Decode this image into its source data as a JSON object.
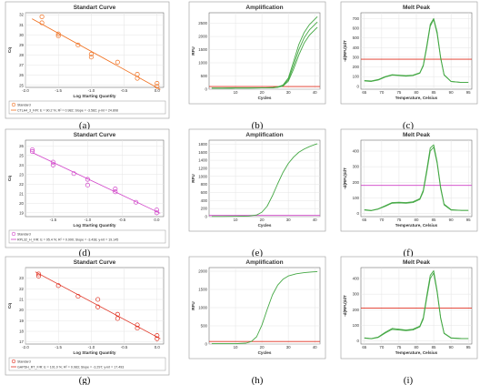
{
  "chart_data": [
    {
      "id": "a",
      "type": "scatter",
      "title": "Standart Curve",
      "xlabel": "Log Starting Quantity",
      "ylabel": "Cq",
      "xlim": [
        -2.0,
        0.1
      ],
      "ylim": [
        24.8,
        32.2
      ],
      "xticks": [
        -2.0,
        -1.5,
        -1.0,
        -0.5,
        0.0
      ],
      "xtick_labels": [
        "-2.0",
        "-1.5",
        "-1.0",
        "-0.5",
        "0.0"
      ],
      "yticks": [
        25,
        26,
        27,
        28,
        29,
        30,
        31,
        32
      ],
      "ytick_labels": [
        "25",
        "26",
        "27",
        "28",
        "29",
        "30",
        "31",
        "32"
      ],
      "grid": true,
      "color": "#f07020",
      "marker": "circle",
      "fit_line": true,
      "legend": {
        "position": "bottom",
        "entries": [
          "Standard",
          "CTLA4_3_F/R: E = 90.2 %; R² = 0.982; Slope = -3.582; y-int = 24.808"
        ]
      },
      "points": {
        "x": [
          -1.75,
          -1.75,
          -1.5,
          -1.5,
          -1.2,
          -1.0,
          -1.0,
          -0.6,
          -0.3,
          -0.3,
          0.0,
          0.0
        ],
        "y": [
          31.8,
          31.2,
          30.1,
          29.9,
          29.0,
          28.1,
          27.8,
          27.3,
          26.1,
          25.7,
          25.2,
          24.9
        ]
      },
      "fit": {
        "x": [
          -1.9,
          0.05
        ],
        "y": [
          31.6,
          24.6
        ]
      }
    },
    {
      "id": "b",
      "type": "line",
      "title": "Amplification",
      "xlabel": "Cycles",
      "ylabel": "RFU",
      "xlim": [
        0,
        42
      ],
      "ylim": [
        0,
        2900
      ],
      "xticks": [
        10,
        20,
        30,
        40
      ],
      "xtick_labels": [
        "10",
        "20",
        "30",
        "40"
      ],
      "yticks": [
        0,
        500,
        1000,
        1500,
        2000,
        2500
      ],
      "ytick_labels": [
        "0",
        "500",
        "1000",
        "1500",
        "2000",
        "2500"
      ],
      "grid": true,
      "threshold": 100,
      "threshold_color": "#e03020",
      "series": [
        {
          "x": [
            1,
            5,
            10,
            15,
            20,
            24,
            26,
            28,
            30,
            32,
            34,
            36,
            38,
            40,
            41
          ],
          "y": [
            40,
            40,
            45,
            45,
            50,
            60,
            90,
            160,
            420,
            1050,
            1700,
            2150,
            2450,
            2650,
            2750
          ]
        },
        {
          "x": [
            1,
            5,
            10,
            15,
            20,
            24,
            26,
            28,
            30,
            32,
            34,
            36,
            38,
            40,
            41
          ],
          "y": [
            40,
            40,
            45,
            45,
            50,
            55,
            80,
            140,
            360,
            900,
            1500,
            1950,
            2250,
            2450,
            2550
          ]
        },
        {
          "x": [
            1,
            5,
            10,
            15,
            20,
            24,
            26,
            28,
            30,
            32,
            34,
            36,
            38,
            40,
            41
          ],
          "y": [
            40,
            40,
            45,
            45,
            50,
            55,
            70,
            120,
            300,
            760,
            1300,
            1750,
            2050,
            2250,
            2350
          ]
        }
      ]
    },
    {
      "id": "c",
      "type": "line",
      "title": "Melt Peak",
      "xlabel": "Temperature, Celsius",
      "ylabel": "-d(RFU)/dT",
      "xlim": [
        64,
        96
      ],
      "ylim": [
        -30,
        760
      ],
      "xticks": [
        65,
        70,
        75,
        80,
        85,
        90,
        95
      ],
      "xtick_labels": [
        "65",
        "70",
        "75",
        "80",
        "85",
        "90",
        "95"
      ],
      "yticks": [
        0,
        100,
        200,
        300,
        400,
        500,
        600,
        700
      ],
      "ytick_labels": [
        "0",
        "100",
        "200",
        "300",
        "400",
        "500",
        "600",
        "700"
      ],
      "grid": true,
      "threshold": 280,
      "threshold_color": "#e03020",
      "series": [
        {
          "x": [
            65,
            67,
            69,
            71,
            73,
            75,
            77,
            79,
            81,
            82,
            83,
            84,
            85,
            86,
            87,
            88,
            90,
            93,
            95
          ],
          "y": [
            60,
            55,
            70,
            100,
            120,
            115,
            110,
            115,
            140,
            220,
            420,
            640,
            700,
            560,
            300,
            120,
            50,
            40,
            40
          ]
        },
        {
          "x": [
            65,
            67,
            69,
            71,
            73,
            75,
            77,
            79,
            81,
            82,
            83,
            84,
            85,
            86,
            87,
            88,
            90,
            93,
            95
          ],
          "y": [
            55,
            50,
            65,
            95,
            115,
            110,
            105,
            110,
            135,
            210,
            400,
            620,
            690,
            540,
            290,
            115,
            50,
            40,
            40
          ]
        }
      ]
    },
    {
      "id": "d",
      "type": "scatter",
      "title": "Standart Curve",
      "xlabel": "Log Starting Quantity",
      "ylabel": "Cq",
      "xlim": [
        -1.9,
        0.1
      ],
      "ylim": [
        18.6,
        26.6
      ],
      "xticks": [
        -1.5,
        -1.0,
        -0.5,
        0.0
      ],
      "xtick_labels": [
        "-1.5",
        "-1.0",
        "-0.5",
        "0.0"
      ],
      "yticks": [
        19,
        20,
        21,
        22,
        23,
        24,
        25,
        26
      ],
      "ytick_labels": [
        "19",
        "20",
        "21",
        "22",
        "23",
        "24",
        "25",
        "26"
      ],
      "grid": true,
      "color": "#d040c8",
      "marker": "circle",
      "fit_line": true,
      "legend": {
        "position": "bottom",
        "entries": [
          "Standard",
          "RPL32_H_F/R: E = 95.4 %; R² = 0.990; Slope = -3.438; y-int = 19.145"
        ]
      },
      "points": {
        "x": [
          -1.8,
          -1.8,
          -1.5,
          -1.5,
          -1.2,
          -1.0,
          -1.0,
          -0.6,
          -0.6,
          -0.3,
          0.0,
          0.0
        ],
        "y": [
          25.6,
          25.4,
          24.3,
          24.0,
          23.1,
          22.5,
          21.9,
          21.5,
          21.2,
          20.1,
          19.3,
          19.0
        ]
      },
      "fit": {
        "x": [
          -1.8,
          0.05
        ],
        "y": [
          25.3,
          18.95
        ]
      }
    },
    {
      "id": "e",
      "type": "line",
      "title": "Amplification",
      "xlabel": "Cycles",
      "ylabel": "RFU",
      "xlim": [
        0,
        42
      ],
      "ylim": [
        0,
        1900
      ],
      "xticks": [
        10,
        20,
        30,
        40
      ],
      "xtick_labels": [
        "10",
        "20",
        "30",
        "40"
      ],
      "yticks": [
        0,
        200,
        400,
        600,
        800,
        1000,
        1200,
        1400,
        1600,
        1800
      ],
      "ytick_labels": [
        "0",
        "200",
        "400",
        "600",
        "800",
        "1000",
        "1200",
        "1400",
        "1600",
        "1800"
      ],
      "grid": true,
      "threshold": 30,
      "threshold_color": "#d040c8",
      "series": [
        {
          "x": [
            1,
            5,
            10,
            15,
            18,
            20,
            22,
            24,
            26,
            28,
            30,
            32,
            34,
            36,
            38,
            40,
            41
          ],
          "y": [
            5,
            5,
            8,
            15,
            40,
            110,
            260,
            520,
            820,
            1100,
            1320,
            1480,
            1600,
            1680,
            1740,
            1790,
            1810
          ]
        }
      ]
    },
    {
      "id": "f",
      "type": "line",
      "title": "Melt Peak",
      "xlabel": "Temperature, Celsius",
      "ylabel": "-d(RFU)/dT",
      "xlim": [
        64,
        96
      ],
      "ylim": [
        -20,
        470
      ],
      "xticks": [
        65,
        70,
        75,
        80,
        85,
        90,
        95
      ],
      "xtick_labels": [
        "65",
        "70",
        "75",
        "80",
        "85",
        "90",
        "95"
      ],
      "yticks": [
        0,
        100,
        200,
        300,
        400
      ],
      "ytick_labels": [
        "0",
        "100",
        "200",
        "300",
        "400"
      ],
      "grid": true,
      "threshold": 180,
      "threshold_color": "#d040c8",
      "series": [
        {
          "x": [
            65,
            67,
            69,
            71,
            73,
            75,
            77,
            79,
            81,
            82,
            83,
            84,
            85,
            86,
            87,
            88,
            90,
            93,
            95
          ],
          "y": [
            25,
            20,
            30,
            50,
            70,
            72,
            70,
            75,
            95,
            150,
            280,
            420,
            440,
            330,
            170,
            60,
            25,
            20,
            20
          ]
        },
        {
          "x": [
            65,
            67,
            69,
            71,
            73,
            75,
            77,
            79,
            81,
            82,
            83,
            84,
            85,
            86,
            87,
            88,
            90,
            93,
            95
          ],
          "y": [
            22,
            18,
            28,
            46,
            66,
            68,
            66,
            70,
            90,
            140,
            265,
            400,
            425,
            320,
            160,
            55,
            22,
            20,
            20
          ]
        }
      ]
    },
    {
      "id": "g",
      "type": "scatter",
      "title": "Standart Curve",
      "xlabel": "Log Starting Quantity",
      "ylabel": "Cq",
      "xlim": [
        -2.0,
        0.1
      ],
      "ylim": [
        16.8,
        24.0
      ],
      "xticks": [
        -2.0,
        -1.5,
        -1.0,
        -0.5,
        0.0
      ],
      "xtick_labels": [
        "-2.0",
        "-1.5",
        "-1.0",
        "-0.5",
        "0.0"
      ],
      "yticks": [
        17,
        18,
        19,
        20,
        21,
        22,
        23
      ],
      "ytick_labels": [
        "17",
        "18",
        "19",
        "20",
        "21",
        "22",
        "23"
      ],
      "grid": true,
      "color": "#e03020",
      "marker": "circle",
      "fit_line": true,
      "legend": {
        "position": "bottom",
        "entries": [
          "Standard",
          "GAPDH_RT_F/R: E = 101.0 %; R² = 0.983; Slope = -3.297; y-int = 17.493"
        ]
      },
      "points": {
        "x": [
          -1.8,
          -1.8,
          -1.5,
          -1.2,
          -0.9,
          -0.9,
          -0.6,
          -0.6,
          -0.3,
          -0.3,
          0.0,
          0.0
        ],
        "y": [
          23.4,
          23.2,
          22.3,
          21.3,
          21.0,
          20.3,
          19.6,
          19.2,
          18.6,
          18.3,
          17.6,
          17.3
        ]
      },
      "fit": {
        "x": [
          -1.85,
          0.05
        ],
        "y": [
          23.6,
          17.3
        ]
      }
    },
    {
      "id": "h",
      "type": "line",
      "title": "Amplification",
      "xlabel": "Cycles",
      "ylabel": "RFU",
      "xlim": [
        0,
        42
      ],
      "ylim": [
        0,
        2100
      ],
      "xticks": [
        10,
        20,
        30,
        40
      ],
      "xtick_labels": [
        "10",
        "20",
        "30",
        "40"
      ],
      "yticks": [
        0,
        500,
        1000,
        1500,
        2000
      ],
      "ytick_labels": [
        "0",
        "500",
        "1000",
        "1500",
        "2000"
      ],
      "grid": true,
      "threshold": 70,
      "threshold_color": "#e03020",
      "series": [
        {
          "x": [
            1,
            5,
            10,
            14,
            16,
            18,
            20,
            22,
            24,
            26,
            28,
            30,
            33,
            36,
            39,
            41
          ],
          "y": [
            10,
            10,
            12,
            25,
            70,
            200,
            520,
            950,
            1350,
            1620,
            1780,
            1870,
            1930,
            1960,
            1980,
            1990
          ]
        }
      ]
    },
    {
      "id": "i",
      "type": "line",
      "title": "Melt Peak",
      "xlabel": "Temperature, Celsius",
      "ylabel": "-d(RFU)/dT",
      "xlim": [
        64,
        96
      ],
      "ylim": [
        -20,
        470
      ],
      "xticks": [
        65,
        70,
        75,
        80,
        85,
        90,
        95
      ],
      "xtick_labels": [
        "65",
        "70",
        "75",
        "80",
        "85",
        "90",
        "95"
      ],
      "yticks": [
        0,
        100,
        200,
        300,
        400
      ],
      "ytick_labels": [
        "0",
        "100",
        "200",
        "300",
        "400"
      ],
      "grid": true,
      "threshold": 210,
      "threshold_color": "#e03020",
      "series": [
        {
          "x": [
            65,
            67,
            69,
            71,
            73,
            75,
            77,
            79,
            81,
            82,
            83,
            84,
            85,
            86,
            87,
            88,
            90,
            93,
            95
          ],
          "y": [
            20,
            15,
            25,
            55,
            80,
            75,
            70,
            75,
            95,
            150,
            290,
            420,
            450,
            320,
            150,
            50,
            20,
            15,
            15
          ]
        },
        {
          "x": [
            65,
            67,
            69,
            71,
            73,
            75,
            77,
            79,
            81,
            82,
            83,
            84,
            85,
            86,
            87,
            88,
            90,
            93,
            95
          ],
          "y": [
            18,
            14,
            22,
            50,
            74,
            70,
            66,
            70,
            90,
            140,
            275,
            400,
            435,
            310,
            145,
            48,
            18,
            15,
            15
          ]
        }
      ]
    }
  ],
  "captions": [
    "(a)",
    "(b)",
    "(c)",
    "(d)",
    "(e)",
    "(f)",
    "(g)",
    "(h)",
    "(i)"
  ],
  "colors": {
    "curve": "#44a844",
    "grid": "#e4e4e4",
    "frame": "#999999",
    "axis": "#555555"
  }
}
